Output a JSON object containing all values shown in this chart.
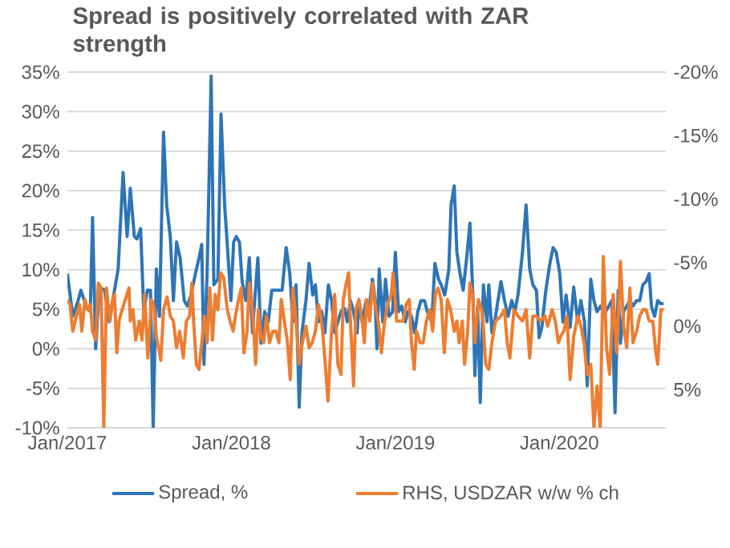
{
  "chart_data": {
    "type": "line",
    "title": "Spread is positively correlated with ZAR strength",
    "xlim": [
      "2017-01-01",
      "2020-08-25"
    ],
    "xticks": [
      {
        "value": "2017-01-01",
        "label": "Jan/2017"
      },
      {
        "value": "2018-01-01",
        "label": "Jan/2018"
      },
      {
        "value": "2019-01-01",
        "label": "Jan/2019"
      },
      {
        "value": "2020-01-01",
        "label": "Jan/2020"
      }
    ],
    "ylim": [
      -10,
      35
    ],
    "yticks": [
      {
        "value": -10,
        "label": "-10%"
      },
      {
        "value": -5,
        "label": "-5%"
      },
      {
        "value": 0,
        "label": "0%"
      },
      {
        "value": 5,
        "label": "5%"
      },
      {
        "value": 10,
        "label": "10%"
      },
      {
        "value": 15,
        "label": "15%"
      },
      {
        "value": 20,
        "label": "20%"
      },
      {
        "value": 25,
        "label": "25%"
      },
      {
        "value": 30,
        "label": "30%"
      },
      {
        "value": 35,
        "label": "35%"
      }
    ],
    "y2lim": [
      8,
      -20
    ],
    "y2ticks": [
      {
        "value": -20,
        "label": "-20%"
      },
      {
        "value": -15,
        "label": "-15%"
      },
      {
        "value": -10,
        "label": "-10%"
      },
      {
        "value": -5,
        "label": "-5%"
      },
      {
        "value": 0,
        "label": "0%"
      },
      {
        "value": 5,
        "label": "5%"
      }
    ],
    "grid": "y",
    "legend": "bottom",
    "series": [
      {
        "name": "Spread, %",
        "color": "#2e75b6",
        "x": [
          "2017-01-01",
          "2017-01-13",
          "2017-01-25",
          "2017-01-31",
          "2017-02-12",
          "2017-02-21",
          "2017-02-26",
          "2017-03-05",
          "2017-03-13",
          "2017-03-25",
          "2017-04-04",
          "2017-04-12",
          "2017-04-24",
          "2017-05-05",
          "2017-05-14",
          "2017-05-21",
          "2017-05-30",
          "2017-06-05",
          "2017-06-13",
          "2017-06-20",
          "2017-06-28",
          "2017-07-05",
          "2017-07-11",
          "2017-07-18",
          "2017-07-25",
          "2017-08-03",
          "2017-08-10",
          "2017-08-18",
          "2017-08-25",
          "2017-09-01",
          "2017-09-09",
          "2017-09-18",
          "2017-09-25",
          "2017-10-03",
          "2017-10-13",
          "2017-10-21",
          "2017-10-27",
          "2017-11-01",
          "2017-11-08",
          "2017-11-17",
          "2017-11-23",
          "2017-12-02",
          "2017-12-09",
          "2017-12-17",
          "2017-12-24",
          "2017-12-31",
          "2018-01-06",
          "2018-01-12",
          "2018-01-19",
          "2018-01-25",
          "2018-02-02",
          "2018-02-10",
          "2018-02-17",
          "2018-02-20",
          "2018-03-01",
          "2018-03-08",
          "2018-03-16",
          "2018-03-24",
          "2018-04-01",
          "2018-04-09",
          "2018-04-17",
          "2018-04-24",
          "2018-05-03",
          "2018-05-11",
          "2018-05-18",
          "2018-05-25",
          "2018-06-01",
          "2018-06-07",
          "2018-06-16",
          "2018-06-23",
          "2018-07-01",
          "2018-07-07",
          "2018-07-14",
          "2018-07-21",
          "2018-07-28",
          "2018-08-05",
          "2018-08-12",
          "2018-08-19",
          "2018-08-26",
          "2018-09-02",
          "2018-09-10",
          "2018-09-16",
          "2018-09-23",
          "2018-09-30",
          "2018-10-08",
          "2018-10-12",
          "2018-10-19",
          "2018-10-28",
          "2018-11-03",
          "2018-11-11",
          "2018-11-17",
          "2018-11-21",
          "2018-11-26",
          "2018-12-04",
          "2018-12-10",
          "2018-12-18",
          "2018-12-26",
          "2019-01-01",
          "2019-01-08",
          "2019-01-15",
          "2019-01-23",
          "2019-01-29",
          "2019-02-06",
          "2019-02-13",
          "2019-02-20",
          "2019-02-27",
          "2019-03-07",
          "2019-03-13",
          "2019-03-23",
          "2019-03-30",
          "2019-04-07",
          "2019-04-13",
          "2019-04-21",
          "2019-04-30",
          "2019-05-05",
          "2019-05-12",
          "2019-05-18",
          "2019-05-25",
          "2019-06-01",
          "2019-06-10",
          "2019-06-16",
          "2019-06-23",
          "2019-06-27",
          "2019-07-03",
          "2019-07-09",
          "2019-07-16",
          "2019-07-24",
          "2019-07-28",
          "2019-08-04",
          "2019-08-12",
          "2019-08-24",
          "2019-09-01",
          "2019-09-09",
          "2019-09-17",
          "2019-09-24",
          "2019-10-01",
          "2019-10-11",
          "2019-10-19",
          "2019-10-27",
          "2019-11-03",
          "2019-11-11",
          "2019-11-17",
          "2019-11-23",
          "2019-12-02",
          "2019-12-11",
          "2019-12-18",
          "2019-12-25",
          "2020-01-02",
          "2020-01-09",
          "2020-01-16",
          "2020-01-25",
          "2020-02-02",
          "2020-02-11",
          "2020-02-18",
          "2020-02-26",
          "2020-03-03",
          "2020-03-11",
          "2020-03-18",
          "2020-03-25",
          "2020-04-02",
          "2020-04-10",
          "2020-04-20",
          "2020-04-27",
          "2020-05-04",
          "2020-05-11",
          "2020-05-16",
          "2020-05-23",
          "2020-05-30",
          "2020-06-06",
          "2020-06-13",
          "2020-06-21",
          "2020-06-28",
          "2020-07-05",
          "2020-07-12",
          "2020-07-19",
          "2020-07-24",
          "2020-07-31",
          "2020-08-07",
          "2020-08-14",
          "2020-08-20"
        ],
        "values": [
          9.5,
          4.1,
          6.1,
          7.4,
          5.4,
          4.7,
          16.6,
          0.0,
          7.8,
          7.4,
          3.4,
          6.1,
          10.1,
          22.3,
          14.2,
          20.3,
          14.2,
          13.9,
          15.2,
          4.7,
          7.4,
          7.4,
          -10.0,
          10.1,
          4.1,
          27.4,
          18.2,
          14.2,
          6.1,
          13.5,
          11.5,
          6.1,
          5.4,
          6.8,
          9.5,
          11.5,
          13.2,
          -2.0,
          9.5,
          34.5,
          8.1,
          8.8,
          29.7,
          18.2,
          12.2,
          6.1,
          13.5,
          14.2,
          13.5,
          8.5,
          6.1,
          11.5,
          2.0,
          4.7,
          11.5,
          0.7,
          4.7,
          3.4,
          7.4,
          7.4,
          7.4,
          7.4,
          12.8,
          9.5,
          3.4,
          8.1,
          -7.4,
          2.0,
          6.1,
          10.8,
          6.8,
          8.1,
          3.4,
          4.7,
          2.0,
          8.1,
          6.1,
          2.0,
          3.4,
          4.7,
          5.1,
          3.4,
          6.1,
          4.7,
          2.0,
          6.1,
          3.4,
          6.1,
          4.7,
          8.8,
          6.1,
          0.0,
          10.1,
          3.4,
          8.8,
          4.1,
          4.7,
          12.2,
          4.7,
          5.4,
          3.4,
          4.7,
          4.1,
          2.0,
          4.7,
          6.1,
          6.1,
          4.7,
          3.4,
          10.8,
          8.8,
          8.1,
          6.8,
          10.0,
          18.2,
          20.6,
          12.2,
          9.5,
          7.4,
          12.2,
          15.9,
          6.1,
          -3.4,
          5.4,
          -6.8,
          8.1,
          3.4,
          8.1,
          2.0,
          4.1,
          8.5,
          6.1,
          4.1,
          6.1,
          4.7,
          6.8,
          12.2,
          18.2,
          10.1,
          8.1,
          7.4,
          1.4,
          2.7,
          7.4,
          10.8,
          12.8,
          12.2,
          9.5,
          3.4,
          6.8,
          2.7,
          7.8,
          3.4,
          6.1,
          3.4,
          -4.7,
          8.8,
          6.1,
          4.7,
          5.4,
          4.4,
          5.4,
          6.1,
          -8.1,
          7.4,
          0.7,
          4.7,
          5.4,
          6.1,
          5.4,
          6.1,
          6.1,
          8.1,
          8.5,
          9.5,
          5.4,
          4.1,
          6.1,
          5.7,
          5.7
        ]
      },
      {
        "name": "RHS,  USDZAR w/w % ch",
        "color": "#ed7d31",
        "axis": "y2",
        "x": [
          "2017-01-01",
          "2017-01-07",
          "2017-01-13",
          "2017-01-21",
          "2017-01-28",
          "2017-02-02",
          "2017-02-09",
          "2017-02-15",
          "2017-02-21",
          "2017-02-26",
          "2017-03-05",
          "2017-03-11",
          "2017-03-17",
          "2017-03-23",
          "2017-03-29",
          "2017-04-06",
          "2017-04-12",
          "2017-04-16",
          "2017-04-21",
          "2017-04-26",
          "2017-05-03",
          "2017-05-10",
          "2017-05-18",
          "2017-05-21",
          "2017-05-27",
          "2017-06-02",
          "2017-06-10",
          "2017-06-16",
          "2017-06-22",
          "2017-06-29",
          "2017-07-07",
          "2017-07-13",
          "2017-07-18",
          "2017-07-28",
          "2017-08-03",
          "2017-08-11",
          "2017-08-18",
          "2017-08-25",
          "2017-09-01",
          "2017-09-08",
          "2017-09-16",
          "2017-09-23",
          "2017-09-30",
          "2017-10-05",
          "2017-10-09",
          "2017-10-15",
          "2017-10-21",
          "2017-10-27",
          "2017-11-02",
          "2017-11-08",
          "2017-11-14",
          "2017-11-20",
          "2017-11-26",
          "2017-12-02",
          "2017-12-08",
          "2017-12-15",
          "2017-12-23",
          "2017-12-29",
          "2018-01-05",
          "2018-01-10",
          "2018-01-17",
          "2018-01-23",
          "2018-01-29",
          "2018-02-05",
          "2018-02-10",
          "2018-02-17",
          "2018-02-24",
          "2018-03-02",
          "2018-03-08",
          "2018-03-14",
          "2018-03-20",
          "2018-03-27",
          "2018-04-03",
          "2018-04-10",
          "2018-04-17",
          "2018-04-22",
          "2018-04-29",
          "2018-05-06",
          "2018-05-12",
          "2018-05-18",
          "2018-05-25",
          "2018-06-01",
          "2018-06-08",
          "2018-06-16",
          "2018-06-23",
          "2018-06-30",
          "2018-07-07",
          "2018-07-14",
          "2018-07-21",
          "2018-07-28",
          "2018-08-04",
          "2018-08-12",
          "2018-08-19",
          "2018-08-26",
          "2018-09-02",
          "2018-09-07",
          "2018-09-14",
          "2018-09-19",
          "2018-09-23",
          "2018-09-30",
          "2018-10-05",
          "2018-10-12",
          "2018-10-19",
          "2018-10-24",
          "2018-10-29",
          "2018-11-05",
          "2018-11-11",
          "2018-11-17",
          "2018-11-24",
          "2018-12-01",
          "2018-12-08",
          "2018-12-15",
          "2018-12-23",
          "2018-12-27",
          "2019-01-04",
          "2019-01-10",
          "2019-01-18",
          "2019-01-25",
          "2019-02-01",
          "2019-02-06",
          "2019-02-12",
          "2019-02-17",
          "2019-02-25",
          "2019-03-04",
          "2019-03-11",
          "2019-03-19",
          "2019-03-25",
          "2019-03-31",
          "2019-04-06",
          "2019-04-13",
          "2019-04-20",
          "2019-04-27",
          "2019-05-04",
          "2019-05-12",
          "2019-05-18",
          "2019-05-23",
          "2019-05-30",
          "2019-06-04",
          "2019-06-11",
          "2019-06-16",
          "2019-06-22",
          "2019-06-27",
          "2019-07-05",
          "2019-07-12",
          "2019-07-16",
          "2019-07-21",
          "2019-07-28",
          "2019-08-04",
          "2019-08-12",
          "2019-08-24",
          "2019-09-01",
          "2019-09-07",
          "2019-09-13",
          "2019-09-22",
          "2019-10-01",
          "2019-10-11",
          "2019-10-19",
          "2019-10-27",
          "2019-11-03",
          "2019-11-11",
          "2019-11-20",
          "2019-11-30",
          "2019-12-06",
          "2019-12-16",
          "2019-12-23",
          "2019-12-30",
          "2020-01-04",
          "2020-01-11",
          "2020-01-18",
          "2020-01-25",
          "2020-02-02",
          "2020-02-11",
          "2020-02-18",
          "2020-02-25",
          "2020-03-03",
          "2020-03-11",
          "2020-03-18",
          "2020-03-25",
          "2020-04-01",
          "2020-04-08",
          "2020-04-15",
          "2020-04-22",
          "2020-04-30",
          "2020-05-08",
          "2020-05-16",
          "2020-05-23",
          "2020-05-30",
          "2020-06-06",
          "2020-06-13",
          "2020-06-21",
          "2020-06-28",
          "2020-07-05",
          "2020-07-12",
          "2020-07-19",
          "2020-07-27",
          "2020-08-03",
          "2020-08-07",
          "2020-08-14",
          "2020-08-20"
        ],
        "values": [
          -2.1,
          -1.7,
          0.4,
          -0.8,
          -1.7,
          0.4,
          -2.1,
          -1.3,
          -1.7,
          0.4,
          1.1,
          -3.4,
          -3.0,
          8.0,
          -3.0,
          -0.4,
          -2.1,
          -2.5,
          2.1,
          -0.4,
          -1.3,
          -2.1,
          -3.0,
          -0.4,
          -1.3,
          1.1,
          -0.4,
          1.1,
          -2.5,
          2.5,
          -2.1,
          -1.5,
          0.8,
          2.7,
          -1.3,
          -2.3,
          -0.8,
          -0.4,
          1.7,
          0.4,
          2.5,
          -0.4,
          -0.8,
          -3.4,
          -0.4,
          3.0,
          3.4,
          1.3,
          -0.8,
          1.3,
          -3.0,
          1.1,
          -2.5,
          -1.3,
          -4.2,
          -3.8,
          -1.3,
          -0.4,
          0.4,
          -0.8,
          -2.1,
          -3.0,
          2.1,
          0.4,
          -3.4,
          -1.3,
          3.0,
          -1.3,
          0.8,
          1.3,
          -0.8,
          1.3,
          0.4,
          0.4,
          1.3,
          -2.1,
          -0.4,
          1.3,
          4.2,
          -3.0,
          -0.4,
          3.0,
          1.3,
          0.0,
          1.7,
          1.3,
          0.4,
          -1.7,
          -0.4,
          2.5,
          5.9,
          0.4,
          -2.5,
          3.0,
          3.8,
          -2.1,
          -3.4,
          -4.2,
          -0.4,
          4.7,
          -1.3,
          -2.1,
          -0.4,
          1.3,
          -2.1,
          -0.4,
          -3.4,
          -1.7,
          -0.4,
          2.1,
          -0.4,
          -1.7,
          -2.5,
          -4.2,
          -0.4,
          -0.4,
          -0.4,
          -1.7,
          -2.1,
          1.3,
          3.4,
          0.4,
          1.3,
          1.3,
          -0.4,
          -1.3,
          0.4,
          -2.5,
          -3.0,
          -2.1,
          2.1,
          -2.1,
          -1.3,
          0.4,
          -0.4,
          1.3,
          -0.4,
          3.0,
          0.4,
          -3.4,
          -2.5,
          1.3,
          -2.1,
          -1.3,
          0.0,
          3.0,
          3.4,
          1.3,
          -0.4,
          -0.8,
          -1.3,
          1.3,
          2.5,
          -1.3,
          -0.8,
          -0.4,
          -1.3,
          2.5,
          -0.8,
          -0.8,
          -0.4,
          -0.8,
          0.0,
          -1.3,
          -0.4,
          1.3,
          0.8,
          0.4,
          -0.8,
          4.2,
          0.8,
          -0.8,
          0.0,
          1.3,
          3.8,
          3.0,
          8.0,
          4.7,
          8.0,
          -5.5,
          1.7,
          3.8,
          -2.5,
          2.1,
          -5.1,
          0.0,
          1.7,
          -3.0,
          1.3,
          0.4,
          -0.8,
          -1.3,
          -1.3,
          -0.4,
          -0.4,
          2.1,
          3.0,
          -1.3,
          -1.3
        ]
      }
    ]
  }
}
